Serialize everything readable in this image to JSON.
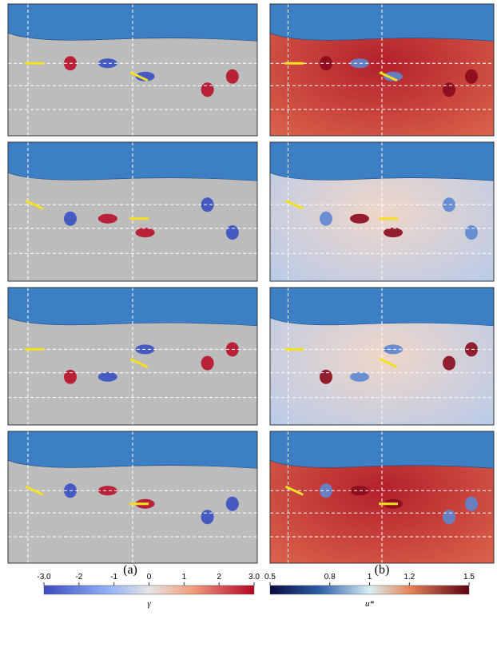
{
  "panel_labels": [
    "(a)",
    "(b)"
  ],
  "colorbars": [
    {
      "label": "γ",
      "lim": [
        -3,
        3
      ],
      "ticks": [
        {
          "value": -3,
          "label": "-3.0"
        },
        -2,
        -1,
        0,
        1,
        2,
        {
          "value": 3,
          "label": "3.0"
        }
      ]
    },
    {
      "label": "u*",
      "lim": [
        0.5,
        1.5
      ],
      "ticks": [
        0.5,
        0.8,
        1,
        1.2,
        1.5
      ]
    }
  ]
}
